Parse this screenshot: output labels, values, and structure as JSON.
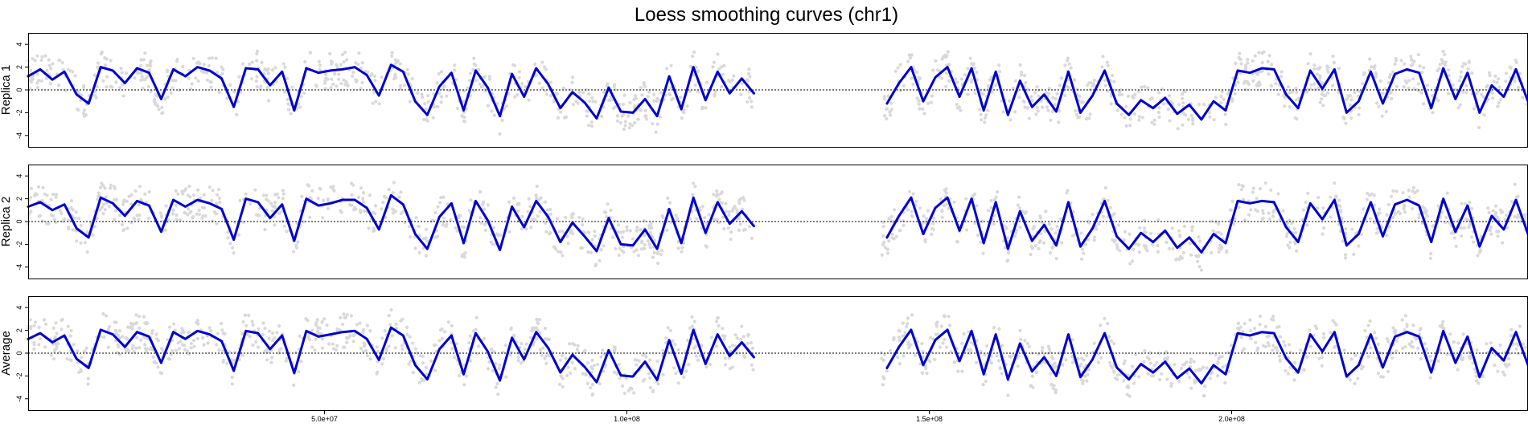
{
  "chart_data": {
    "type": "scatter",
    "title": "Loess smoothing curves (chr1)",
    "xlim": [
      1000000,
      249000000
    ],
    "ylim": [
      -5,
      5
    ],
    "x_ticks": [
      50000000,
      100000000,
      150000000,
      200000000
    ],
    "x_tick_labels": [
      "5.0e+07",
      "1.0e+08",
      "1.5e+08",
      "2.0e+08"
    ],
    "y_ticks": [
      -4,
      -2,
      0,
      2,
      4
    ],
    "y_tick_labels": [
      "-4",
      "-2",
      "0",
      "2",
      "4"
    ],
    "reference_line": 0,
    "colors": {
      "points": "#d9d9d9",
      "curve": "#0000cc"
    },
    "gap": [
      121000000,
      142000000
    ],
    "panels": [
      {
        "ylabel": "Replica 1",
        "curve": {
          "x": [
            1000000,
            3000000,
            5000000,
            7000000,
            9000000,
            11000000,
            13000000,
            15000000,
            17000000,
            19000000,
            21000000,
            23000000,
            25000000,
            27000000,
            29000000,
            31000000,
            33000000,
            35000000,
            37000000,
            39000000,
            41000000,
            43000000,
            45000000,
            47000000,
            49000000,
            51000000,
            53000000,
            55000000,
            57000000,
            59000000,
            61000000,
            63000000,
            65000000,
            67000000,
            69000000,
            71000000,
            73000000,
            75000000,
            77000000,
            79000000,
            81000000,
            83000000,
            85000000,
            87000000,
            89000000,
            91000000,
            93000000,
            95000000,
            97000000,
            99000000,
            101000000,
            103000000,
            105000000,
            107000000,
            109000000,
            111000000,
            113000000,
            115000000,
            117000000,
            119000000,
            121000000,
            143000000,
            145000000,
            147000000,
            149000000,
            151000000,
            153000000,
            155000000,
            157000000,
            159000000,
            161000000,
            163000000,
            165000000,
            167000000,
            169000000,
            171000000,
            173000000,
            175000000,
            177000000,
            179000000,
            181000000,
            183000000,
            185000000,
            187000000,
            189000000,
            191000000,
            193000000,
            195000000,
            197000000,
            199000000,
            201000000,
            203000000,
            205000000,
            207000000,
            209000000,
            211000000,
            213000000,
            215000000,
            217000000,
            219000000,
            221000000,
            223000000,
            225000000,
            227000000,
            229000000,
            231000000,
            233000000,
            235000000,
            237000000,
            239000000,
            241000000,
            243000000,
            245000000,
            247000000,
            249000000
          ],
          "y": [
            1.2,
            1.8,
            0.9,
            1.6,
            -0.4,
            -1.2,
            2.0,
            1.7,
            0.6,
            1.9,
            1.5,
            -0.8,
            1.8,
            1.2,
            2.0,
            1.7,
            1.0,
            -1.5,
            1.9,
            1.8,
            0.4,
            1.6,
            -1.8,
            1.9,
            1.5,
            1.7,
            1.8,
            2.0,
            1.3,
            -0.5,
            2.2,
            1.6,
            -1.0,
            -2.2,
            0.3,
            1.5,
            -1.8,
            1.7,
            0.2,
            -2.3,
            1.4,
            -0.6,
            1.9,
            0.5,
            -1.6,
            -0.2,
            -1.1,
            -2.5,
            0.2,
            -1.9,
            -2.0,
            -0.8,
            -2.3,
            1.2,
            -1.7,
            2.0,
            -0.9,
            1.6,
            -0.3,
            1.0,
            -0.3,
            -1.2,
            0.6,
            2.0,
            -1.0,
            1.1,
            2.0,
            -0.6,
            1.9,
            -1.8,
            1.6,
            -2.2,
            0.8,
            -1.5,
            -0.4,
            -1.9,
            1.6,
            -2.0,
            -0.5,
            1.7,
            -1.2,
            -2.2,
            -0.9,
            -1.6,
            -0.7,
            -2.1,
            -1.3,
            -2.6,
            -1.0,
            -1.8,
            1.7,
            1.5,
            1.9,
            1.8,
            -0.4,
            -1.6,
            1.7,
            0.1,
            1.8,
            -2.0,
            -1.0,
            1.6,
            -1.2,
            1.4,
            1.8,
            1.5,
            -1.6,
            1.9,
            -0.8,
            1.5,
            -2.0,
            0.4,
            -0.6,
            1.8,
            -1.0
          ]
        }
      },
      {
        "ylabel": "Replica 2",
        "curve": {
          "x": [
            1000000,
            3000000,
            5000000,
            7000000,
            9000000,
            11000000,
            13000000,
            15000000,
            17000000,
            19000000,
            21000000,
            23000000,
            25000000,
            27000000,
            29000000,
            31000000,
            33000000,
            35000000,
            37000000,
            39000000,
            41000000,
            43000000,
            45000000,
            47000000,
            49000000,
            51000000,
            53000000,
            55000000,
            57000000,
            59000000,
            61000000,
            63000000,
            65000000,
            67000000,
            69000000,
            71000000,
            73000000,
            75000000,
            77000000,
            79000000,
            81000000,
            83000000,
            85000000,
            87000000,
            89000000,
            91000000,
            93000000,
            95000000,
            97000000,
            99000000,
            101000000,
            103000000,
            105000000,
            107000000,
            109000000,
            111000000,
            113000000,
            115000000,
            117000000,
            119000000,
            121000000,
            143000000,
            145000000,
            147000000,
            149000000,
            151000000,
            153000000,
            155000000,
            157000000,
            159000000,
            161000000,
            163000000,
            165000000,
            167000000,
            169000000,
            171000000,
            173000000,
            175000000,
            177000000,
            179000000,
            181000000,
            183000000,
            185000000,
            187000000,
            189000000,
            191000000,
            193000000,
            195000000,
            197000000,
            199000000,
            201000000,
            203000000,
            205000000,
            207000000,
            209000000,
            211000000,
            213000000,
            215000000,
            217000000,
            219000000,
            221000000,
            223000000,
            225000000,
            227000000,
            229000000,
            231000000,
            233000000,
            235000000,
            237000000,
            239000000,
            241000000,
            243000000,
            245000000,
            247000000,
            249000000
          ],
          "y": [
            1.3,
            1.7,
            1.0,
            1.5,
            -0.6,
            -1.4,
            2.1,
            1.6,
            0.5,
            1.8,
            1.4,
            -0.9,
            1.9,
            1.3,
            1.9,
            1.6,
            1.1,
            -1.6,
            2.0,
            1.7,
            0.3,
            1.5,
            -1.7,
            2.0,
            1.4,
            1.6,
            1.9,
            1.9,
            1.2,
            -0.7,
            2.3,
            1.5,
            -1.1,
            -2.4,
            0.4,
            1.6,
            -1.9,
            1.8,
            0.1,
            -2.5,
            1.3,
            -0.5,
            1.8,
            0.4,
            -1.8,
            -0.1,
            -1.3,
            -2.6,
            0.3,
            -2.0,
            -2.1,
            -0.7,
            -2.4,
            1.1,
            -1.9,
            2.1,
            -1.0,
            1.7,
            -0.2,
            0.9,
            -0.4,
            -1.4,
            0.5,
            2.1,
            -1.1,
            1.2,
            2.1,
            -0.8,
            2.0,
            -1.9,
            1.7,
            -2.4,
            0.9,
            -1.7,
            -0.3,
            -2.1,
            1.7,
            -2.2,
            -0.6,
            1.8,
            -1.3,
            -2.4,
            -1.0,
            -1.8,
            -0.8,
            -2.3,
            -1.4,
            -2.7,
            -1.1,
            -1.9,
            1.8,
            1.6,
            1.8,
            1.7,
            -0.5,
            -1.8,
            1.6,
            0.2,
            1.9,
            -2.1,
            -1.1,
            1.7,
            -1.3,
            1.5,
            1.9,
            1.4,
            -1.8,
            2.0,
            -0.9,
            1.4,
            -2.2,
            0.5,
            -0.7,
            1.9,
            -1.1
          ]
        }
      },
      {
        "ylabel": "Average",
        "curve": {
          "x": [
            1000000,
            3000000,
            5000000,
            7000000,
            9000000,
            11000000,
            13000000,
            15000000,
            17000000,
            19000000,
            21000000,
            23000000,
            25000000,
            27000000,
            29000000,
            31000000,
            33000000,
            35000000,
            37000000,
            39000000,
            41000000,
            43000000,
            45000000,
            47000000,
            49000000,
            51000000,
            53000000,
            55000000,
            57000000,
            59000000,
            61000000,
            63000000,
            65000000,
            67000000,
            69000000,
            71000000,
            73000000,
            75000000,
            77000000,
            79000000,
            81000000,
            83000000,
            85000000,
            87000000,
            89000000,
            91000000,
            93000000,
            95000000,
            97000000,
            99000000,
            101000000,
            103000000,
            105000000,
            107000000,
            109000000,
            111000000,
            113000000,
            115000000,
            117000000,
            119000000,
            121000000,
            143000000,
            145000000,
            147000000,
            149000000,
            151000000,
            153000000,
            155000000,
            157000000,
            159000000,
            161000000,
            163000000,
            165000000,
            167000000,
            169000000,
            171000000,
            173000000,
            175000000,
            177000000,
            179000000,
            181000000,
            183000000,
            185000000,
            187000000,
            189000000,
            191000000,
            193000000,
            195000000,
            197000000,
            199000000,
            201000000,
            203000000,
            205000000,
            207000000,
            209000000,
            211000000,
            213000000,
            215000000,
            217000000,
            219000000,
            221000000,
            223000000,
            225000000,
            227000000,
            229000000,
            231000000,
            233000000,
            235000000,
            237000000,
            239000000,
            241000000,
            243000000,
            245000000,
            247000000,
            249000000
          ],
          "y": [
            1.25,
            1.75,
            0.95,
            1.55,
            -0.5,
            -1.3,
            2.05,
            1.65,
            0.55,
            1.85,
            1.45,
            -0.85,
            1.85,
            1.25,
            1.95,
            1.65,
            1.05,
            -1.55,
            1.95,
            1.75,
            0.35,
            1.55,
            -1.75,
            1.95,
            1.45,
            1.65,
            1.85,
            1.95,
            1.25,
            -0.6,
            2.25,
            1.55,
            -1.05,
            -2.3,
            0.35,
            1.55,
            -1.85,
            1.75,
            0.15,
            -2.4,
            1.35,
            -0.55,
            1.85,
            0.45,
            -1.7,
            -0.15,
            -1.2,
            -2.55,
            0.25,
            -1.95,
            -2.05,
            -0.75,
            -2.35,
            1.15,
            -1.8,
            2.05,
            -0.95,
            1.65,
            -0.25,
            0.95,
            -0.35,
            -1.3,
            0.55,
            2.05,
            -1.05,
            1.15,
            2.05,
            -0.7,
            1.95,
            -1.85,
            1.65,
            -2.3,
            0.85,
            -1.6,
            -0.35,
            -2.0,
            1.65,
            -2.1,
            -0.55,
            1.75,
            -1.25,
            -2.3,
            -0.95,
            -1.7,
            -0.75,
            -2.2,
            -1.35,
            -2.65,
            -1.05,
            -1.85,
            1.75,
            1.55,
            1.85,
            1.75,
            -0.45,
            -1.7,
            1.65,
            0.15,
            1.85,
            -2.05,
            -1.05,
            1.65,
            -1.25,
            1.45,
            1.85,
            1.45,
            -1.7,
            1.95,
            -0.85,
            1.45,
            -2.1,
            0.45,
            -0.65,
            1.85,
            -1.05
          ]
        }
      }
    ]
  }
}
